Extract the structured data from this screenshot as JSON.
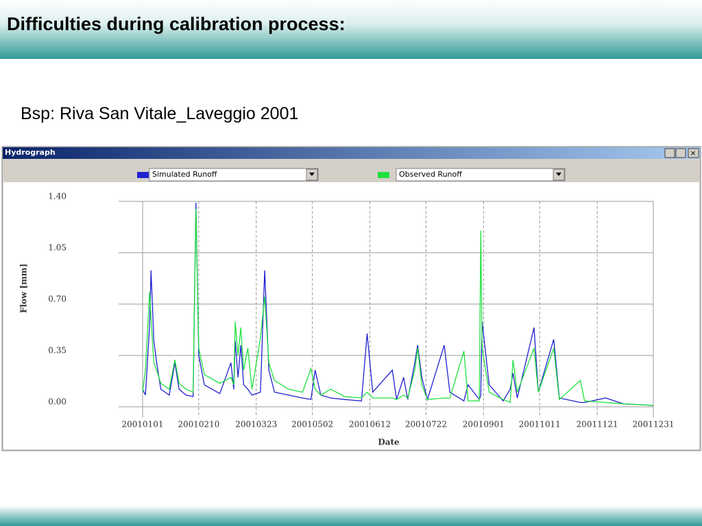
{
  "slide": {
    "title": "Difficulties during calibration process:",
    "subtitle": "Bsp: Riva San Vitale_Laveggio 2001"
  },
  "window": {
    "title": "Hydrograph",
    "selectors": [
      "Simulated Runoff",
      "Observed Runoff"
    ]
  },
  "chart_data": {
    "type": "line",
    "xlabel": "Date",
    "ylabel": "Flow [mm]",
    "x": [
      "2001-01-01",
      "2001-01-03",
      "2001-01-06",
      "2001-01-07",
      "2001-01-09",
      "2001-01-11",
      "2001-01-14",
      "2001-01-20",
      "2001-01-24",
      "2001-01-27",
      "2001-02-01",
      "2001-02-06",
      "2001-02-08",
      "2001-02-10",
      "2001-02-14",
      "2001-02-25",
      "2001-03-05",
      "2001-03-07",
      "2001-03-08",
      "2001-03-10",
      "2001-03-12",
      "2001-03-14",
      "2001-03-17",
      "2001-03-20",
      "2001-03-26",
      "2001-03-29",
      "2001-04-01",
      "2001-04-05",
      "2001-04-15",
      "2001-04-25",
      "2001-05-01",
      "2001-05-04",
      "2001-05-08",
      "2001-05-15",
      "2001-05-25",
      "2001-06-06",
      "2001-06-10",
      "2001-06-14",
      "2001-06-28",
      "2001-07-01",
      "2001-07-06",
      "2001-07-09",
      "2001-07-14",
      "2001-07-16",
      "2001-07-19",
      "2001-07-23",
      "2001-08-04",
      "2001-08-08",
      "2001-08-18",
      "2001-08-21",
      "2001-08-29",
      "2001-08-30",
      "2001-08-31",
      "2001-09-05",
      "2001-09-15",
      "2001-09-20",
      "2001-09-22",
      "2001-09-25",
      "2001-10-07",
      "2001-10-10",
      "2001-10-21",
      "2001-10-25",
      "2001-11-09",
      "2001-11-12",
      "2001-11-27",
      "2001-12-10",
      "2001-12-31"
    ],
    "series": [
      {
        "name": "Simulated Runoff",
        "color": "#2020d0",
        "values": [
          0.12,
          0.08,
          0.55,
          0.93,
          0.45,
          0.3,
          0.12,
          0.08,
          0.3,
          0.12,
          0.08,
          0.07,
          1.39,
          0.35,
          0.15,
          0.09,
          0.3,
          0.12,
          0.45,
          0.2,
          0.42,
          0.15,
          0.12,
          0.08,
          0.1,
          0.93,
          0.25,
          0.1,
          0.08,
          0.06,
          0.05,
          0.25,
          0.08,
          0.06,
          0.05,
          0.04,
          0.5,
          0.1,
          0.25,
          0.05,
          0.2,
          0.05,
          0.3,
          0.42,
          0.2,
          0.05,
          0.42,
          0.1,
          0.04,
          0.15,
          0.05,
          0.08,
          0.58,
          0.15,
          0.04,
          0.12,
          0.23,
          0.06,
          0.54,
          0.1,
          0.46,
          0.06,
          0.03,
          0.03,
          0.06,
          0.02,
          0.01
        ]
      },
      {
        "name": "Observed Runoff",
        "color": "#20e040",
        "values": [
          0.1,
          0.25,
          0.78,
          0.6,
          0.3,
          0.25,
          0.16,
          0.12,
          0.32,
          0.16,
          0.12,
          0.1,
          1.35,
          0.4,
          0.22,
          0.16,
          0.2,
          0.15,
          0.58,
          0.35,
          0.54,
          0.25,
          0.4,
          0.12,
          0.47,
          0.75,
          0.3,
          0.18,
          0.12,
          0.1,
          0.26,
          0.12,
          0.08,
          0.12,
          0.07,
          0.06,
          0.1,
          0.06,
          0.06,
          0.05,
          0.08,
          0.06,
          0.25,
          0.4,
          0.15,
          0.05,
          0.06,
          0.06,
          0.38,
          0.04,
          0.04,
          1.2,
          0.4,
          0.1,
          0.05,
          0.03,
          0.32,
          0.1,
          0.4,
          0.1,
          0.4,
          0.05,
          0.18,
          0.04,
          0.03,
          0.02,
          0.01
        ]
      }
    ],
    "xlim": [
      "2001-01-01",
      "2001-12-31"
    ],
    "xticks": [
      {
        "value": "2001-01-01",
        "label": "20010101"
      },
      {
        "value": "2001-02-10",
        "label": "20010210"
      },
      {
        "value": "2001-03-23",
        "label": "20010323"
      },
      {
        "value": "2001-05-02",
        "label": "20010502"
      },
      {
        "value": "2001-06-12",
        "label": "20010612"
      },
      {
        "value": "2001-07-22",
        "label": "20010722"
      },
      {
        "value": "2001-09-01",
        "label": "20010901"
      },
      {
        "value": "2001-10-11",
        "label": "20011011"
      },
      {
        "value": "2001-11-21",
        "label": "20011121"
      },
      {
        "value": "2001-12-31",
        "label": "20011231"
      }
    ],
    "ylim": [
      0,
      1.4
    ],
    "yticks": [
      {
        "value": 0,
        "label": "0.00"
      },
      {
        "value": 0.35,
        "label": "0.35"
      },
      {
        "value": 0.7,
        "label": "0.70"
      },
      {
        "value": 1.05,
        "label": "1.05"
      },
      {
        "value": 1.4,
        "label": "1.40"
      }
    ],
    "grid": true
  }
}
